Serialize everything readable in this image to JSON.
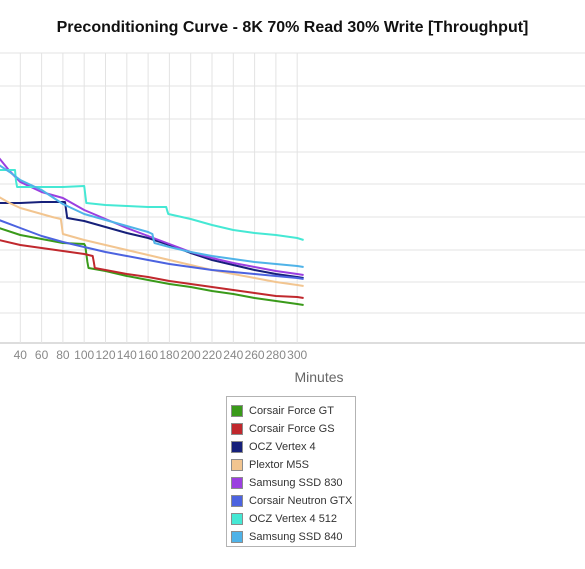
{
  "chart_data": {
    "type": "line",
    "title": "Preconditioning Curve - 8K 70% Read 30% Write [Throughput]",
    "xlabel": "Minutes",
    "ylabel": "",
    "x_ticks": [
      40,
      60,
      80,
      100,
      120,
      140,
      160,
      180,
      200,
      220,
      240,
      260,
      280,
      300
    ],
    "xlim": [
      20,
      306
    ],
    "grid": true,
    "legend_placement": "bottom-center",
    "series": [
      {
        "name": "Corsair Force GT",
        "color": "#3a9a1a",
        "points": [
          [
            20,
            228
          ],
          [
            40,
            235
          ],
          [
            60,
            239
          ],
          [
            80,
            243
          ],
          [
            100,
            244
          ],
          [
            101,
            246
          ],
          [
            103,
            262
          ],
          [
            104,
            268
          ],
          [
            120,
            271
          ],
          [
            140,
            276
          ],
          [
            160,
            280
          ],
          [
            180,
            284
          ],
          [
            200,
            287
          ],
          [
            220,
            291
          ],
          [
            240,
            294
          ],
          [
            260,
            298
          ],
          [
            280,
            301
          ],
          [
            300,
            304
          ],
          [
            306,
            305
          ]
        ]
      },
      {
        "name": "Corsair Force GS",
        "color": "#c0282d",
        "points": [
          [
            20,
            240
          ],
          [
            40,
            245
          ],
          [
            60,
            248
          ],
          [
            80,
            251
          ],
          [
            100,
            254
          ],
          [
            108,
            256
          ],
          [
            109,
            262
          ],
          [
            110,
            268
          ],
          [
            120,
            270
          ],
          [
            140,
            274
          ],
          [
            160,
            277
          ],
          [
            180,
            281
          ],
          [
            200,
            284
          ],
          [
            220,
            287
          ],
          [
            240,
            290
          ],
          [
            260,
            293
          ],
          [
            280,
            296
          ],
          [
            300,
            297
          ],
          [
            306,
            298
          ]
        ]
      },
      {
        "name": "OCZ Vertex 4",
        "color": "#16207a",
        "points": [
          [
            20,
            203
          ],
          [
            40,
            203
          ],
          [
            60,
            202
          ],
          [
            82,
            202
          ],
          [
            83,
            210
          ],
          [
            84,
            218
          ],
          [
            100,
            221
          ],
          [
            120,
            227
          ],
          [
            140,
            233
          ],
          [
            160,
            238
          ],
          [
            180,
            245
          ],
          [
            200,
            253
          ],
          [
            220,
            260
          ],
          [
            240,
            265
          ],
          [
            260,
            270
          ],
          [
            280,
            274
          ],
          [
            300,
            277
          ],
          [
            306,
            278
          ]
        ]
      },
      {
        "name": "Plextor M5S",
        "color": "#f2c590",
        "points": [
          [
            20,
            197
          ],
          [
            30,
            203
          ],
          [
            40,
            208
          ],
          [
            60,
            214
          ],
          [
            70,
            217
          ],
          [
            78,
            219
          ],
          [
            79,
            226
          ],
          [
            80,
            234
          ],
          [
            100,
            240
          ],
          [
            120,
            245
          ],
          [
            140,
            250
          ],
          [
            160,
            255
          ],
          [
            180,
            260
          ],
          [
            200,
            265
          ],
          [
            220,
            270
          ],
          [
            240,
            274
          ],
          [
            260,
            278
          ],
          [
            280,
            282
          ],
          [
            300,
            285
          ],
          [
            306,
            286
          ]
        ]
      },
      {
        "name": "Samsung SSD 830",
        "color": "#9b3fe0",
        "points": [
          [
            20,
            158
          ],
          [
            30,
            171
          ],
          [
            40,
            182
          ],
          [
            60,
            192
          ],
          [
            80,
            198
          ],
          [
            100,
            210
          ],
          [
            120,
            219
          ],
          [
            140,
            228
          ],
          [
            160,
            236
          ],
          [
            180,
            244
          ],
          [
            200,
            252
          ],
          [
            220,
            258
          ],
          [
            240,
            263
          ],
          [
            260,
            267
          ],
          [
            280,
            271
          ],
          [
            300,
            274
          ],
          [
            306,
            275
          ]
        ]
      },
      {
        "name": "Corsair Neutron GTX",
        "color": "#4c63e0",
        "points": [
          [
            20,
            220
          ],
          [
            40,
            228
          ],
          [
            60,
            236
          ],
          [
            80,
            242
          ],
          [
            100,
            247
          ],
          [
            120,
            252
          ],
          [
            140,
            256
          ],
          [
            160,
            260
          ],
          [
            180,
            264
          ],
          [
            200,
            267
          ],
          [
            220,
            270
          ],
          [
            240,
            272
          ],
          [
            260,
            274
          ],
          [
            280,
            276
          ],
          [
            300,
            278
          ],
          [
            306,
            279
          ]
        ]
      },
      {
        "name": "OCZ Vertex 4 512",
        "color": "#45e8d4",
        "points": [
          [
            20,
            170
          ],
          [
            35,
            170
          ],
          [
            36,
            181
          ],
          [
            37,
            187
          ],
          [
            60,
            187
          ],
          [
            80,
            187
          ],
          [
            100,
            186
          ],
          [
            101,
            195
          ],
          [
            102,
            203
          ],
          [
            120,
            205
          ],
          [
            140,
            206
          ],
          [
            160,
            207
          ],
          [
            177,
            207
          ],
          [
            178,
            211
          ],
          [
            179,
            214
          ],
          [
            200,
            219
          ],
          [
            220,
            225
          ],
          [
            240,
            230
          ],
          [
            260,
            233
          ],
          [
            280,
            235
          ],
          [
            300,
            238
          ],
          [
            306,
            240
          ]
        ]
      },
      {
        "name": "Samsung SSD 840",
        "color": "#4fb3e8",
        "points": [
          [
            20,
            165
          ],
          [
            30,
            172
          ],
          [
            40,
            180
          ],
          [
            60,
            190
          ],
          [
            80,
            204
          ],
          [
            100,
            214
          ],
          [
            120,
            220
          ],
          [
            140,
            226
          ],
          [
            160,
            232
          ],
          [
            164,
            234
          ],
          [
            165,
            239
          ],
          [
            166,
            243
          ],
          [
            180,
            247
          ],
          [
            200,
            252
          ],
          [
            220,
            256
          ],
          [
            240,
            259
          ],
          [
            260,
            262
          ],
          [
            280,
            264
          ],
          [
            300,
            266
          ],
          [
            306,
            267
          ]
        ]
      }
    ]
  }
}
